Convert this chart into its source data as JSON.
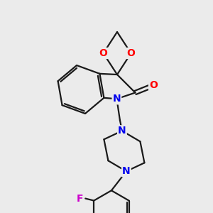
{
  "bg_color": "#ebebeb",
  "bond_color": "#1a1a1a",
  "bond_width": 1.6,
  "atom_colors": {
    "O": "#ff0000",
    "N": "#0000ee",
    "F": "#cc00cc",
    "C": "#1a1a1a"
  }
}
